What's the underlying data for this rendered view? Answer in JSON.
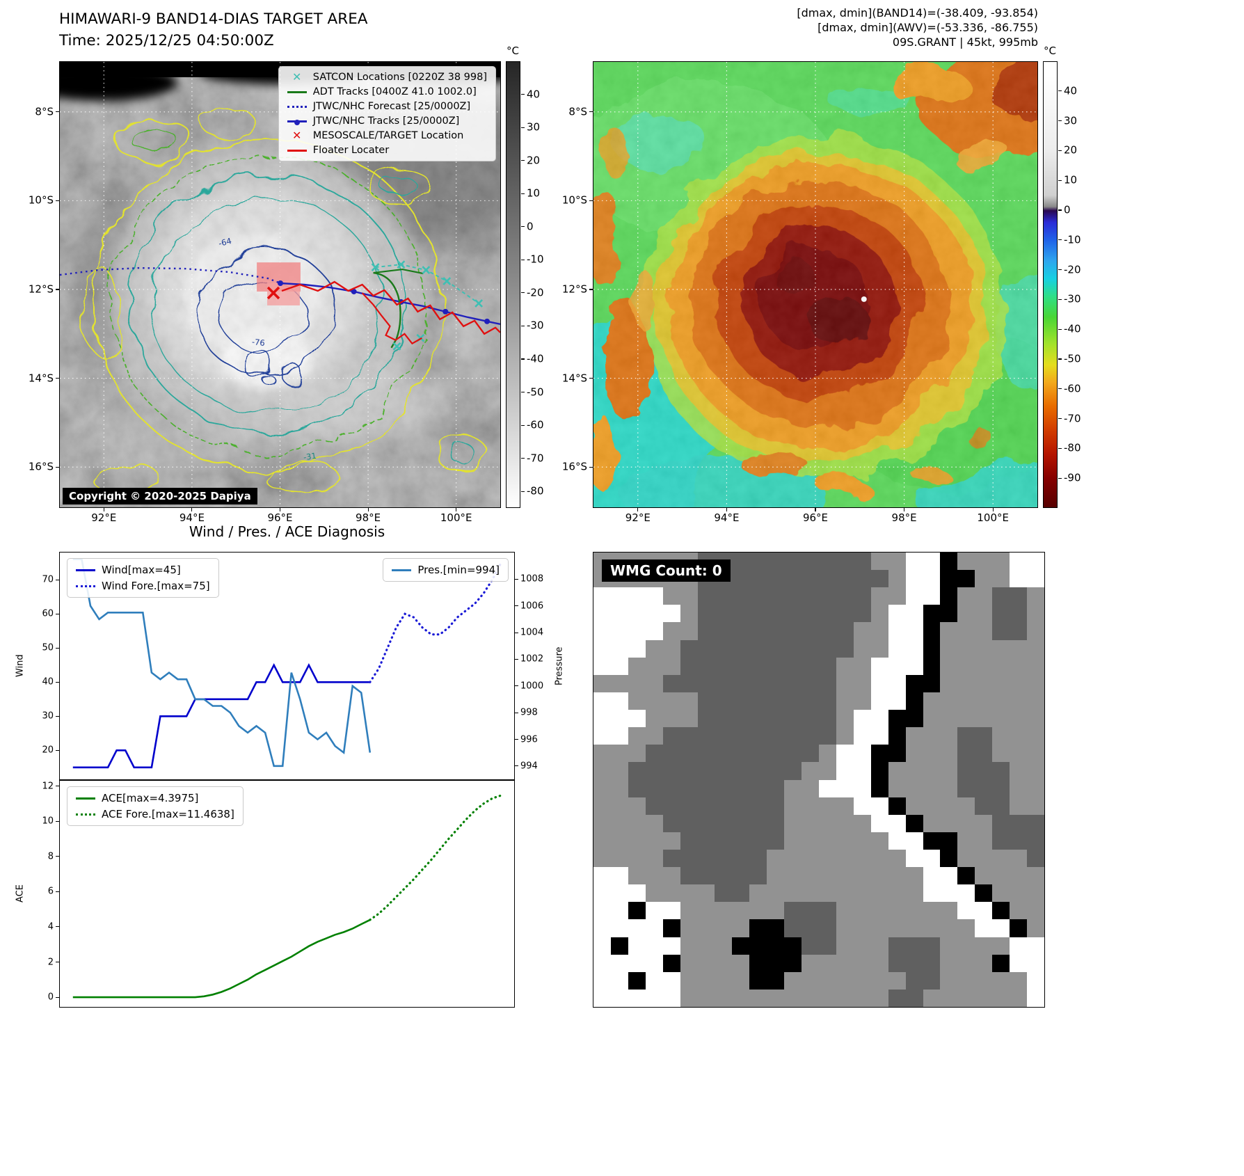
{
  "band14": {
    "title": "HIMAWARI-9 BAND14-DIAS TARGET AREA",
    "time": "Time: 2025/12/25 04:50:00Z",
    "copyright": "Copyright © 2020-2025 Dapiya",
    "unit": "°C",
    "legend": [
      {
        "label": "SATCON Locations [0220Z 38 998]",
        "type": "xmark",
        "color": "#3fbfb3"
      },
      {
        "label": "ADT Tracks [0400Z 41.0 1002.0]",
        "type": "line",
        "color": "#1a7a1a"
      },
      {
        "label": "JTWC/NHC Forecast [25/0000Z]",
        "type": "dotted",
        "color": "#2020bb"
      },
      {
        "label": "JTWC/NHC Tracks [25/0000Z]",
        "type": "linedot",
        "color": "#2020bb"
      },
      {
        "label": "MESOSCALE/TARGET Location",
        "type": "xmark",
        "color": "#e01010"
      },
      {
        "label": "Floater Locater",
        "type": "line",
        "color": "#e01010"
      }
    ],
    "contour_labels": [
      "-64",
      "-76",
      "-31"
    ],
    "colorbar_ticks": [
      40,
      30,
      20,
      10,
      0,
      -10,
      -20,
      -30,
      -40,
      -50,
      -60,
      -70,
      -80
    ]
  },
  "awv": {
    "header": [
      "[dmax, dmin](BAND14)=(-38.409, -93.854)",
      "[dmax, dmin](AWV)=(-53.336, -86.755)",
      "09S.GRANT | 45kt, 995mb"
    ],
    "unit": "°C",
    "colorbar_ticks": [
      40,
      30,
      20,
      10,
      0,
      -10,
      -20,
      -30,
      -40,
      -50,
      -60,
      -70,
      -80,
      -90
    ]
  },
  "maps": {
    "lat_ticks": [
      "8°S",
      "10°S",
      "12°S",
      "14°S",
      "16°S"
    ],
    "lon_ticks": [
      "92°E",
      "94°E",
      "96°E",
      "98°E",
      "100°E"
    ]
  },
  "diagnosis": {
    "title": "Wind / Pres. / ACE Diagnosis"
  },
  "wmg": {
    "label": "WMG Count: 0",
    "palette": {
      "w": "#ffffff",
      "g": "#929292",
      "d": "#606060",
      "b": "#000000"
    },
    "grid": [
      "ggggggddddddddddggwwbgggww",
      "ggggggdddddddddddgwwbbggww",
      "wwwwggddddddddddggwwbggddg",
      "wwwwwgddddddddddgwwbbggddg",
      "wwwwggdddddddddggwwbgggddg",
      "wwwggddddddddddggwwbgggggg",
      "wwgggdddddddddggwwwbgggggg",
      "ggggddddddddddggwwbbgggggg",
      "wwggggddddddddggwwbggggggg",
      "wwwgggddddddddgwwbbggggggg",
      "wwggddddddddddgwwbgggddggg",
      "gggddddddddddgwwbbgggddggg",
      "ggddddddddddggwwbggggdddgg",
      "ggdddddddddggwwwbggggdddgg",
      "gggddddddddggggwwbggggddgg",
      "ggggdddddddgggggwwbggggddd",
      "gggggddddddggggggwwbbggddd",
      "ggggddddddggggggggwwbggggd",
      "wwgggdddddgggggggggwwbgggg",
      "wwwggggddggggggggggwwwbggg",
      "wwbwwggggggdddgggggggwwbgg",
      "wwwwbggggbbdddggggggggwwbg",
      "wbwwwgggbbbbddgggdddggggww",
      "wwwwbggggbbbgggggdddgggbww",
      "wwbwwggggbbgggggggddgggggw",
      "wwwwwggggggggggggddggggggw"
    ]
  },
  "chart_data": [
    {
      "type": "line",
      "title": "Wind / Pres.",
      "x_range": [
        -1.5,
        50.5
      ],
      "grid": false,
      "legend_position": "upper-left / upper-right",
      "axes": {
        "wind": {
          "label": "Wind",
          "ticks": [
            20,
            30,
            40,
            50,
            60,
            70
          ],
          "lim": [
            11.5,
            78
          ]
        },
        "pressure": {
          "label": "Pressure",
          "ticks": [
            994,
            996,
            998,
            1000,
            1002,
            1004,
            1006,
            1008
          ],
          "lim": [
            993,
            1010
          ]
        }
      },
      "series": [
        {
          "id": "wind-observed",
          "name": "Wind[max=45]",
          "axis": "wind",
          "x_start": 0,
          "style": "solid",
          "color": "#0000cc",
          "values": [
            15,
            15,
            15,
            15,
            15,
            20,
            20,
            15,
            15,
            15,
            30,
            30,
            30,
            30,
            35,
            35,
            35,
            35,
            35,
            35,
            35,
            40,
            40,
            45,
            40,
            40,
            40,
            45,
            40,
            40,
            40,
            40,
            40,
            40,
            40
          ]
        },
        {
          "id": "wind-forecast",
          "name": "Wind Fore.[max=75]",
          "axis": "wind",
          "x_start": 34,
          "style": "dotted",
          "color": "#1a1ad6",
          "values": [
            40,
            44,
            50,
            56,
            60,
            59,
            56,
            54,
            54,
            56,
            59,
            61,
            63,
            66,
            70,
            75
          ]
        },
        {
          "id": "pressure-observed",
          "name": "Pres.[min=994]",
          "axis": "pressure",
          "x_start": 0,
          "style": "solid",
          "color": "#2f7ebc",
          "values": [
            1009.5,
            1009.5,
            1006,
            1005,
            1005.5,
            1005.5,
            1005.5,
            1005.5,
            1005.5,
            1001,
            1000.5,
            1001,
            1000.5,
            1000.5,
            999,
            999,
            998.5,
            998.5,
            998,
            997,
            996.5,
            997,
            996.5,
            994,
            994,
            1001,
            999,
            996.5,
            996,
            996.5,
            995.5,
            995,
            1000,
            999.5,
            995
          ]
        }
      ]
    },
    {
      "type": "line",
      "title": "ACE",
      "x_range": [
        -1.5,
        50.5
      ],
      "grid": false,
      "legend_position": "upper-left",
      "axes": {
        "ace": {
          "label": "ACE",
          "ticks": [
            0,
            2,
            4,
            6,
            8,
            10,
            12
          ],
          "lim": [
            -0.55,
            12.3
          ]
        }
      },
      "series": [
        {
          "id": "ace-observed",
          "name": "ACE[max=4.3975]",
          "axis": "ace",
          "x_start": 0,
          "style": "solid",
          "color": "#008000",
          "values": [
            0,
            0,
            0,
            0,
            0,
            0,
            0,
            0,
            0,
            0,
            0,
            0,
            0,
            0,
            0,
            0.05,
            0.15,
            0.3,
            0.5,
            0.75,
            1.0,
            1.3,
            1.55,
            1.8,
            2.05,
            2.3,
            2.6,
            2.9,
            3.15,
            3.35,
            3.55,
            3.7,
            3.9,
            4.15,
            4.3975
          ]
        },
        {
          "id": "ace-forecast",
          "name": "ACE Fore.[max=11.4638]",
          "axis": "ace",
          "x_start": 34,
          "style": "dotted",
          "color": "#008000",
          "values": [
            4.3975,
            4.75,
            5.2,
            5.7,
            6.2,
            6.7,
            7.25,
            7.8,
            8.4,
            9.0,
            9.55,
            10.1,
            10.6,
            11.0,
            11.3,
            11.4638
          ]
        }
      ]
    }
  ]
}
